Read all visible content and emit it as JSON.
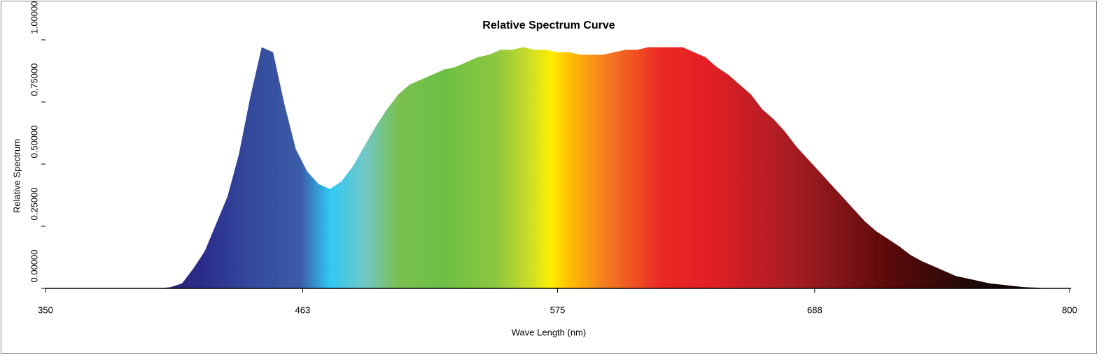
{
  "chart_data": {
    "type": "area",
    "title": "Relative Spectrum Curve",
    "x_label": "Wave Length (nm)",
    "y_label": "Relative Spectrum",
    "x": [
      350,
      355,
      360,
      365,
      370,
      375,
      380,
      385,
      390,
      395,
      400,
      405,
      410,
      415,
      420,
      425,
      430,
      435,
      440,
      445,
      450,
      455,
      460,
      465,
      470,
      475,
      480,
      485,
      490,
      495,
      500,
      505,
      510,
      515,
      520,
      525,
      530,
      535,
      540,
      545,
      550,
      555,
      560,
      565,
      570,
      575,
      580,
      585,
      590,
      595,
      600,
      605,
      610,
      615,
      620,
      625,
      630,
      635,
      640,
      645,
      650,
      655,
      660,
      665,
      670,
      675,
      680,
      685,
      690,
      695,
      700,
      705,
      710,
      715,
      720,
      725,
      730,
      735,
      740,
      745,
      750,
      755,
      760,
      765,
      770,
      775,
      780,
      785,
      790,
      795,
      800
    ],
    "values": [
      0,
      0,
      0,
      0,
      0,
      0,
      0,
      0,
      0,
      0,
      0,
      0.005,
      0.02,
      0.08,
      0.15,
      0.26,
      0.37,
      0.54,
      0.77,
      0.97,
      0.95,
      0.74,
      0.56,
      0.47,
      0.42,
      0.4,
      0.43,
      0.49,
      0.57,
      0.65,
      0.72,
      0.78,
      0.82,
      0.84,
      0.86,
      0.88,
      0.89,
      0.91,
      0.93,
      0.94,
      0.96,
      0.96,
      0.97,
      0.96,
      0.96,
      0.95,
      0.95,
      0.94,
      0.94,
      0.94,
      0.95,
      0.96,
      0.96,
      0.97,
      0.97,
      0.97,
      0.97,
      0.95,
      0.93,
      0.89,
      0.86,
      0.82,
      0.78,
      0.72,
      0.68,
      0.63,
      0.57,
      0.52,
      0.47,
      0.42,
      0.37,
      0.32,
      0.27,
      0.23,
      0.2,
      0.17,
      0.135,
      0.11,
      0.09,
      0.07,
      0.05,
      0.04,
      0.03,
      0.02,
      0.015,
      0.01,
      0.005,
      0.003,
      0,
      0,
      0
    ],
    "xlim": [
      350,
      800
    ],
    "ylim": [
      0,
      1
    ],
    "xticks": [
      350,
      463,
      575,
      688,
      800
    ],
    "yticks": [
      {
        "value": 0,
        "label": "0.00000"
      },
      {
        "value": 0.25,
        "label": "0.25000"
      },
      {
        "value": 0.5,
        "label": "0.50000"
      },
      {
        "value": 0.75,
        "label": "0.75000"
      },
      {
        "value": 1,
        "label": "1.00000"
      }
    ],
    "fill_stops": [
      {
        "x": 400,
        "color": "#2a1f6e"
      },
      {
        "x": 420,
        "color": "#2b2e8c"
      },
      {
        "x": 440,
        "color": "#34499c"
      },
      {
        "x": 462,
        "color": "#3c5ca8"
      },
      {
        "x": 475,
        "color": "#30c8f4"
      },
      {
        "x": 490,
        "color": "#70c8c8"
      },
      {
        "x": 505,
        "color": "#7ac050"
      },
      {
        "x": 525,
        "color": "#6cbf44"
      },
      {
        "x": 548,
        "color": "#8cc63f"
      },
      {
        "x": 562,
        "color": "#c8dc2a"
      },
      {
        "x": 572,
        "color": "#ffee00"
      },
      {
        "x": 580,
        "color": "#ffc000"
      },
      {
        "x": 595,
        "color": "#f58020"
      },
      {
        "x": 620,
        "color": "#ea2a24"
      },
      {
        "x": 640,
        "color": "#e51f25"
      },
      {
        "x": 680,
        "color": "#a41d23"
      },
      {
        "x": 720,
        "color": "#5c0a0a"
      },
      {
        "x": 760,
        "color": "#1a0a08"
      },
      {
        "x": 800,
        "color": "#000000"
      }
    ]
  }
}
